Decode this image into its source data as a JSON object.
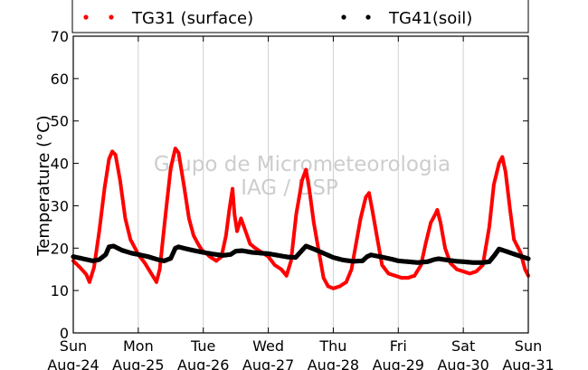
{
  "chart_data": {
    "type": "scatter",
    "title": "",
    "xlabel": "",
    "ylabel": "Temperature (°C)",
    "ylim": [
      0,
      70
    ],
    "yticks": [
      0,
      10,
      20,
      30,
      40,
      50,
      60,
      70
    ],
    "xlim": [
      0,
      7
    ],
    "x_unit": "days since Aug-24 00:00",
    "xtick_labels": [
      {
        "day": "Sun",
        "date": "Aug-24"
      },
      {
        "day": "Mon",
        "date": "Aug-25"
      },
      {
        "day": "Tue",
        "date": "Aug-26"
      },
      {
        "day": "Wed",
        "date": "Aug-27"
      },
      {
        "day": "Thu",
        "date": "Aug-28"
      },
      {
        "day": "Fri",
        "date": "Aug-29"
      },
      {
        "day": "Sat",
        "date": "Aug-30"
      },
      {
        "day": "Sun",
        "date": "Aug-31"
      }
    ],
    "grid": "vertical",
    "legend_position": "top",
    "watermark": [
      "Grupo de Micrometeorologia",
      "IAG / USP"
    ],
    "series": [
      {
        "name": "TG31 (surface)",
        "color": "#ff0000",
        "points": [
          [
            0.0,
            17.0
          ],
          [
            0.1,
            15.5
          ],
          [
            0.2,
            13.8
          ],
          [
            0.25,
            12.0
          ],
          [
            0.32,
            15.5
          ],
          [
            0.4,
            24.0
          ],
          [
            0.48,
            34.0
          ],
          [
            0.55,
            41.0
          ],
          [
            0.6,
            42.8
          ],
          [
            0.65,
            42.0
          ],
          [
            0.72,
            36.0
          ],
          [
            0.8,
            27.0
          ],
          [
            0.88,
            22.0
          ],
          [
            0.95,
            20.0
          ],
          [
            1.0,
            18.5
          ],
          [
            1.1,
            16.5
          ],
          [
            1.2,
            14.0
          ],
          [
            1.28,
            12.0
          ],
          [
            1.33,
            15.0
          ],
          [
            1.42,
            28.0
          ],
          [
            1.5,
            39.0
          ],
          [
            1.57,
            43.5
          ],
          [
            1.62,
            42.5
          ],
          [
            1.7,
            35.0
          ],
          [
            1.78,
            27.0
          ],
          [
            1.85,
            23.0
          ],
          [
            1.92,
            21.0
          ],
          [
            1.98,
            19.5
          ],
          [
            2.03,
            19.0
          ],
          [
            2.1,
            18.0
          ],
          [
            2.2,
            17.0
          ],
          [
            2.28,
            18.0
          ],
          [
            2.35,
            23.0
          ],
          [
            2.4,
            29.0
          ],
          [
            2.45,
            34.0
          ],
          [
            2.48,
            28.0
          ],
          [
            2.52,
            24.0
          ],
          [
            2.58,
            27.0
          ],
          [
            2.65,
            24.0
          ],
          [
            2.72,
            21.0
          ],
          [
            2.8,
            20.0
          ],
          [
            2.9,
            19.0
          ],
          [
            3.0,
            18.0
          ],
          [
            3.1,
            16.0
          ],
          [
            3.2,
            15.0
          ],
          [
            3.28,
            13.5
          ],
          [
            3.35,
            17.0
          ],
          [
            3.43,
            28.0
          ],
          [
            3.52,
            36.0
          ],
          [
            3.58,
            38.5
          ],
          [
            3.63,
            34.0
          ],
          [
            3.7,
            26.0
          ],
          [
            3.78,
            19.0
          ],
          [
            3.85,
            13.0
          ],
          [
            3.92,
            11.0
          ],
          [
            4.0,
            10.5
          ],
          [
            4.1,
            11.0
          ],
          [
            4.2,
            12.0
          ],
          [
            4.28,
            15.0
          ],
          [
            4.35,
            21.0
          ],
          [
            4.42,
            27.0
          ],
          [
            4.5,
            32.0
          ],
          [
            4.55,
            33.0
          ],
          [
            4.6,
            29.0
          ],
          [
            4.68,
            22.0
          ],
          [
            4.75,
            16.0
          ],
          [
            4.85,
            14.0
          ],
          [
            4.95,
            13.5
          ],
          [
            5.05,
            13.0
          ],
          [
            5.15,
            13.0
          ],
          [
            5.25,
            13.5
          ],
          [
            5.35,
            16.0
          ],
          [
            5.42,
            21.0
          ],
          [
            5.5,
            26.0
          ],
          [
            5.57,
            28.0
          ],
          [
            5.6,
            29.0
          ],
          [
            5.65,
            26.0
          ],
          [
            5.72,
            20.0
          ],
          [
            5.8,
            16.5
          ],
          [
            5.9,
            15.0
          ],
          [
            6.0,
            14.5
          ],
          [
            6.1,
            14.0
          ],
          [
            6.2,
            14.5
          ],
          [
            6.3,
            16.0
          ],
          [
            6.4,
            25.0
          ],
          [
            6.47,
            35.0
          ],
          [
            6.55,
            40.0
          ],
          [
            6.6,
            41.5
          ],
          [
            6.65,
            38.0
          ],
          [
            6.72,
            29.0
          ],
          [
            6.78,
            22.0
          ],
          [
            6.88,
            19.0
          ],
          [
            6.95,
            15.0
          ],
          [
            7.0,
            13.5
          ]
        ]
      },
      {
        "name": "TG41(soil)",
        "color": "#000000",
        "points": [
          [
            0.0,
            18.0
          ],
          [
            0.15,
            17.5
          ],
          [
            0.3,
            17.0
          ],
          [
            0.4,
            17.3
          ],
          [
            0.5,
            18.5
          ],
          [
            0.55,
            20.3
          ],
          [
            0.62,
            20.5
          ],
          [
            0.75,
            19.5
          ],
          [
            0.9,
            18.8
          ],
          [
            1.0,
            18.5
          ],
          [
            1.15,
            18.0
          ],
          [
            1.3,
            17.3
          ],
          [
            1.4,
            17.0
          ],
          [
            1.5,
            17.6
          ],
          [
            1.57,
            20.0
          ],
          [
            1.62,
            20.3
          ],
          [
            1.75,
            19.8
          ],
          [
            1.9,
            19.3
          ],
          [
            2.0,
            19.0
          ],
          [
            2.15,
            18.6
          ],
          [
            2.3,
            18.3
          ],
          [
            2.42,
            18.5
          ],
          [
            2.5,
            19.3
          ],
          [
            2.6,
            19.4
          ],
          [
            2.75,
            19.0
          ],
          [
            2.9,
            18.8
          ],
          [
            3.0,
            18.7
          ],
          [
            3.15,
            18.3
          ],
          [
            3.3,
            17.9
          ],
          [
            3.42,
            17.8
          ],
          [
            3.52,
            19.5
          ],
          [
            3.58,
            20.5
          ],
          [
            3.7,
            19.8
          ],
          [
            3.85,
            18.8
          ],
          [
            4.0,
            17.8
          ],
          [
            4.15,
            17.2
          ],
          [
            4.3,
            16.9
          ],
          [
            4.45,
            17.0
          ],
          [
            4.52,
            18.0
          ],
          [
            4.58,
            18.4
          ],
          [
            4.75,
            17.9
          ],
          [
            4.9,
            17.4
          ],
          [
            5.0,
            17.0
          ],
          [
            5.15,
            16.8
          ],
          [
            5.3,
            16.6
          ],
          [
            5.45,
            16.8
          ],
          [
            5.55,
            17.3
          ],
          [
            5.62,
            17.5
          ],
          [
            5.75,
            17.2
          ],
          [
            5.9,
            16.9
          ],
          [
            6.0,
            16.8
          ],
          [
            6.15,
            16.6
          ],
          [
            6.3,
            16.6
          ],
          [
            6.4,
            16.8
          ],
          [
            6.48,
            18.3
          ],
          [
            6.55,
            19.8
          ],
          [
            6.65,
            19.3
          ],
          [
            6.8,
            18.5
          ],
          [
            7.0,
            17.5
          ]
        ]
      }
    ]
  }
}
